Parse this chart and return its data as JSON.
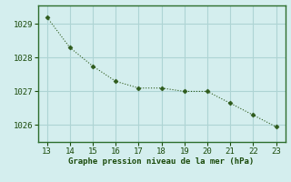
{
  "x": [
    13,
    14,
    15,
    16,
    17,
    18,
    19,
    20,
    21,
    22,
    23
  ],
  "y": [
    1029.2,
    1028.3,
    1027.75,
    1027.3,
    1027.1,
    1027.1,
    1027.0,
    1027.0,
    1026.65,
    1026.3,
    1025.95
  ],
  "xlim": [
    12.6,
    23.4
  ],
  "ylim": [
    1025.5,
    1029.55
  ],
  "xticks": [
    13,
    14,
    15,
    16,
    17,
    18,
    19,
    20,
    21,
    22,
    23
  ],
  "yticks": [
    1026,
    1027,
    1028,
    1029
  ],
  "xlabel": "Graphe pression niveau de la mer (hPa)",
  "line_color": "#2d5a1b",
  "marker_color": "#2d5a1b",
  "bg_color": "#d4eeee",
  "plot_bg_color": "#d4eeee",
  "grid_color": "#aed4d4",
  "label_color": "#1a4a0a",
  "tick_color": "#1a4a0a",
  "border_color": "#2d6e2d"
}
